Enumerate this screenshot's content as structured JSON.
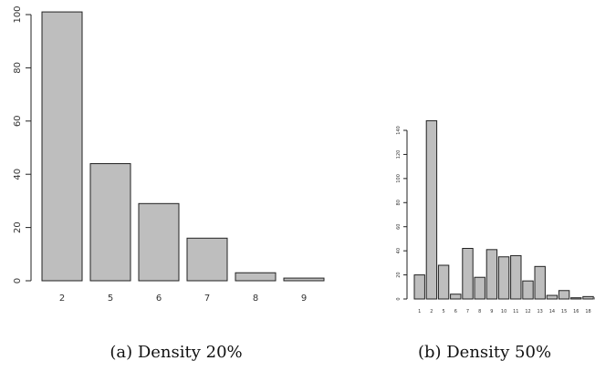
{
  "chart_data": [
    {
      "type": "bar",
      "caption": "(a) Density 20%",
      "categories": [
        "2",
        "5",
        "6",
        "7",
        "8",
        "9"
      ],
      "values": [
        101,
        44,
        29,
        16,
        3,
        1
      ],
      "ylim": [
        0,
        100
      ],
      "yticks": [
        0,
        20,
        40,
        60,
        80,
        100
      ],
      "title": "",
      "xlabel": "",
      "ylabel": "",
      "bar_color": "#bebebe"
    },
    {
      "type": "bar",
      "caption": "(b) Density 50%",
      "categories": [
        "1",
        "2",
        "5",
        "6",
        "7",
        "8",
        "9",
        "10",
        "11",
        "12",
        "13",
        "14",
        "15",
        "16",
        "18",
        "1"
      ],
      "values": [
        20,
        148,
        28,
        4,
        42,
        18,
        41,
        35,
        36,
        15,
        27,
        3,
        7,
        1,
        2,
        1
      ],
      "ylim": [
        0,
        140
      ],
      "yticks": [
        0,
        20,
        40,
        60,
        80,
        100,
        120,
        140
      ],
      "title": "",
      "xlabel": "",
      "ylabel": "",
      "bar_color": "#bebebe"
    }
  ]
}
